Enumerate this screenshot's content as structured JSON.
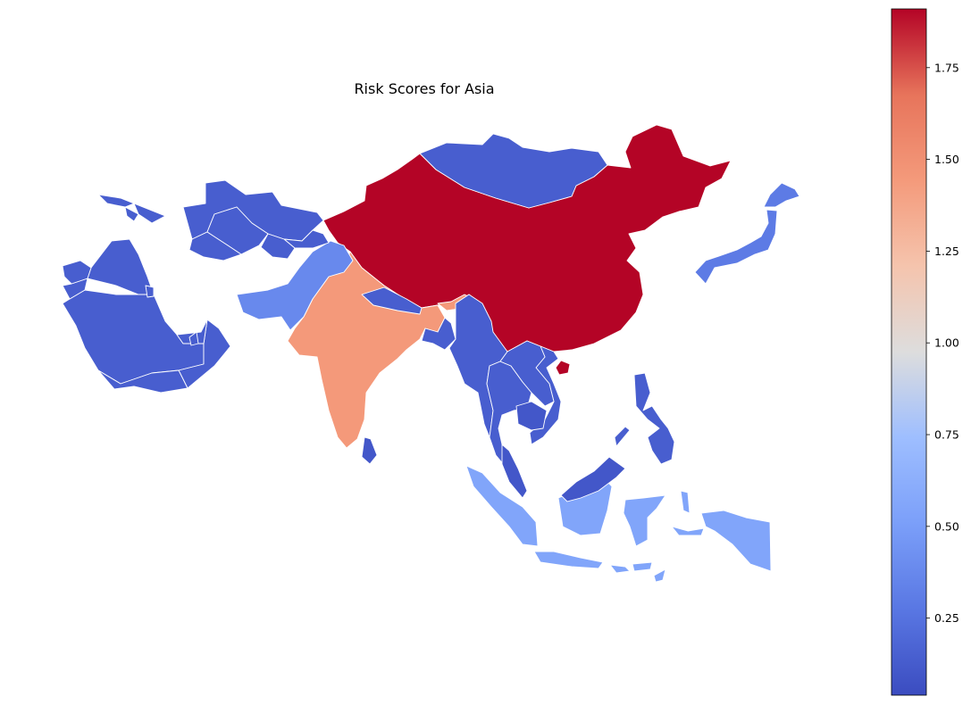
{
  "map": {
    "title": "Risk Scores for Asia"
  },
  "colorbar": {
    "colormap": "coolwarm",
    "min": 0.04,
    "max": 1.91,
    "ticks": [
      {
        "value": 0.25,
        "label": "0.25"
      },
      {
        "value": 0.5,
        "label": "0.50"
      },
      {
        "value": 0.75,
        "label": "0.75"
      },
      {
        "value": 1.0,
        "label": "1.00"
      },
      {
        "value": 1.25,
        "label": "1.25"
      },
      {
        "value": 1.5,
        "label": "1.50"
      },
      {
        "value": 1.75,
        "label": "1.75"
      }
    ]
  },
  "chart_data": {
    "type": "choropleth",
    "title": "Risk Scores for Asia",
    "colorbar_range": [
      0.04,
      1.91
    ],
    "regions": [
      {
        "region": "China",
        "value": 1.91
      },
      {
        "region": "Taiwan",
        "value": 1.91
      },
      {
        "region": "India",
        "value": 1.45
      },
      {
        "region": "Bhutan",
        "value": 1.45
      },
      {
        "region": "Indonesia",
        "value": 0.55
      },
      {
        "region": "East Timor",
        "value": 0.55
      },
      {
        "region": "Pakistan",
        "value": 0.38
      },
      {
        "region": "Japan",
        "value": 0.3
      },
      {
        "region": "Kazakhstan",
        "value": 0.14
      },
      {
        "region": "Mongolia",
        "value": 0.14
      },
      {
        "region": "Saudi Arabia",
        "value": 0.14
      },
      {
        "region": "Myanmar",
        "value": 0.14
      },
      {
        "region": "Thailand",
        "value": 0.14
      },
      {
        "region": "Nepal",
        "value": 0.14
      },
      {
        "region": "Bangladesh",
        "value": 0.14
      },
      {
        "region": "Sri Lanka",
        "value": 0.1
      },
      {
        "region": "Vietnam",
        "value": 0.14
      },
      {
        "region": "Laos",
        "value": 0.14
      },
      {
        "region": "Cambodia",
        "value": 0.1
      },
      {
        "region": "Malaysia",
        "value": 0.1
      },
      {
        "region": "Philippines",
        "value": 0.14
      },
      {
        "region": "Uzbekistan",
        "value": 0.14
      },
      {
        "region": "Turkmenistan",
        "value": 0.14
      },
      {
        "region": "Kyrgyzstan",
        "value": 0.14
      },
      {
        "region": "Tajikistan",
        "value": 0.14
      },
      {
        "region": "Iraq",
        "value": 0.14
      },
      {
        "region": "Jordan",
        "value": 0.14
      },
      {
        "region": "Syria",
        "value": 0.14
      },
      {
        "region": "Oman",
        "value": 0.14
      },
      {
        "region": "Yemen",
        "value": 0.14
      },
      {
        "region": "United Arab Emirates",
        "value": 0.14
      },
      {
        "region": "Qatar",
        "value": 0.14
      },
      {
        "region": "Kuwait",
        "value": 0.14
      },
      {
        "region": "Georgia",
        "value": 0.14
      },
      {
        "region": "Armenia",
        "value": 0.14
      },
      {
        "region": "Azerbaijan",
        "value": 0.14
      }
    ]
  }
}
